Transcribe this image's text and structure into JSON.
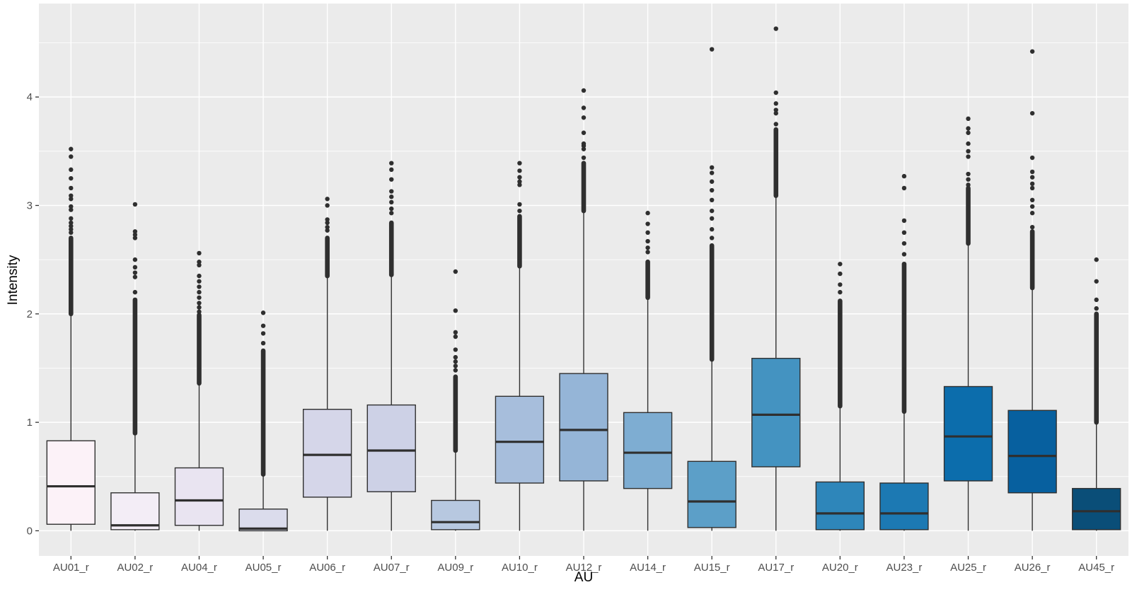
{
  "chart_data": {
    "type": "boxplot",
    "xlabel": "AU",
    "ylabel": "Intensity",
    "ylim": [
      -0.232,
      4.862
    ],
    "yticks": [
      0,
      1,
      2,
      3,
      4
    ],
    "yminor": [
      0.5,
      1.5,
      2.5,
      3.5,
      4.5
    ],
    "grid_on": true,
    "panel_bg": "#EBEBEB",
    "grid_color": "#FFFFFF",
    "line_color": "#2F2F2F",
    "tick_color": "#333333",
    "tick_label_color": "#4D4D4D",
    "categories": [
      "AU01_r",
      "AU02_r",
      "AU04_r",
      "AU05_r",
      "AU06_r",
      "AU07_r",
      "AU09_r",
      "AU10_r",
      "AU12_r",
      "AU14_r",
      "AU15_r",
      "AU17_r",
      "AU20_r",
      "AU23_r",
      "AU25_r",
      "AU26_r",
      "AU45_r"
    ],
    "boxes": [
      {
        "label": "AU01_r",
        "fill": "#FCF2F8",
        "q1": 0.06,
        "median": 0.41,
        "q3": 0.83,
        "whisker_low": 0.0,
        "whisker_high": 2.0,
        "outlier_dense": [
          2.0,
          2.7
        ],
        "outliers": [
          2.75,
          2.78,
          2.81,
          2.84,
          2.88,
          2.96,
          2.99,
          3.06,
          3.09,
          3.16,
          3.25,
          3.33,
          3.45,
          3.52
        ]
      },
      {
        "label": "AU02_r",
        "fill": "#F3EDF6",
        "q1": 0.01,
        "median": 0.05,
        "q3": 0.35,
        "whisker_low": 0.0,
        "whisker_high": 0.9,
        "outlier_dense": [
          0.9,
          2.13
        ],
        "outliers": [
          2.2,
          2.34,
          2.38,
          2.43,
          2.5,
          2.7,
          2.73,
          2.76,
          3.01
        ]
      },
      {
        "label": "AU04_r",
        "fill": "#E9E4F1",
        "q1": 0.05,
        "median": 0.28,
        "q3": 0.58,
        "whisker_low": 0.0,
        "whisker_high": 1.36,
        "outlier_dense": [
          1.36,
          1.99
        ],
        "outliers": [
          2.02,
          2.06,
          2.1,
          2.15,
          2.2,
          2.25,
          2.3,
          2.35,
          2.45,
          2.48,
          2.56
        ]
      },
      {
        "label": "AU05_r",
        "fill": "#DBDCEC",
        "q1": 0.0,
        "median": 0.02,
        "q3": 0.2,
        "whisker_low": 0.0,
        "whisker_high": 0.52,
        "outlier_dense": [
          0.52,
          1.66
        ],
        "outliers": [
          1.73,
          1.82,
          1.89,
          2.01
        ]
      },
      {
        "label": "AU06_r",
        "fill": "#D5D6E9",
        "q1": 0.31,
        "median": 0.7,
        "q3": 1.12,
        "whisker_low": 0.0,
        "whisker_high": 2.35,
        "outlier_dense": [
          2.35,
          2.7
        ],
        "outliers": [
          2.77,
          2.8,
          2.84,
          2.87,
          3.0,
          3.06
        ]
      },
      {
        "label": "AU07_r",
        "fill": "#CDD1E6",
        "q1": 0.36,
        "median": 0.74,
        "q3": 1.16,
        "whisker_low": 0.0,
        "whisker_high": 2.36,
        "outlier_dense": [
          2.36,
          2.84
        ],
        "outliers": [
          2.93,
          2.97,
          3.03,
          3.08,
          3.13,
          3.24,
          3.33,
          3.39
        ]
      },
      {
        "label": "AU09_r",
        "fill": "#B7C8E0",
        "q1": 0.01,
        "median": 0.08,
        "q3": 0.28,
        "whisker_low": 0.0,
        "whisker_high": 0.74,
        "outlier_dense": [
          0.74,
          1.42
        ],
        "outliers": [
          1.48,
          1.52,
          1.56,
          1.6,
          1.67,
          1.79,
          1.83,
          2.03,
          2.39
        ]
      },
      {
        "label": "AU10_r",
        "fill": "#A7BEDC",
        "q1": 0.44,
        "median": 0.82,
        "q3": 1.24,
        "whisker_low": 0.0,
        "whisker_high": 2.44,
        "outlier_dense": [
          2.44,
          2.9
        ],
        "outliers": [
          2.95,
          3.01,
          3.19,
          3.22,
          3.26,
          3.32,
          3.39
        ]
      },
      {
        "label": "AU12_r",
        "fill": "#95B5D7",
        "q1": 0.46,
        "median": 0.93,
        "q3": 1.45,
        "whisker_low": 0.0,
        "whisker_high": 2.95,
        "outlier_dense": [
          2.95,
          3.39
        ],
        "outliers": [
          3.44,
          3.52,
          3.55,
          3.57,
          3.67,
          3.81,
          3.9,
          4.06
        ]
      },
      {
        "label": "AU14_r",
        "fill": "#7EADD2",
        "q1": 0.39,
        "median": 0.72,
        "q3": 1.09,
        "whisker_low": 0.0,
        "whisker_high": 2.15,
        "outlier_dense": [
          2.15,
          2.48
        ],
        "outliers": [
          2.57,
          2.61,
          2.67,
          2.75,
          2.83,
          2.93
        ]
      },
      {
        "label": "AU15_r",
        "fill": "#5C9FC8",
        "q1": 0.03,
        "median": 0.27,
        "q3": 0.64,
        "whisker_low": 0.0,
        "whisker_high": 1.58,
        "outlier_dense": [
          1.58,
          2.63
        ],
        "outliers": [
          2.7,
          2.78,
          2.88,
          2.95,
          3.05,
          3.14,
          3.22,
          3.3,
          3.35,
          4.44
        ]
      },
      {
        "label": "AU17_r",
        "fill": "#4493C1",
        "q1": 0.59,
        "median": 1.07,
        "q3": 1.59,
        "whisker_low": 0.0,
        "whisker_high": 3.09,
        "outlier_dense": [
          3.09,
          3.7
        ],
        "outliers": [
          3.75,
          3.85,
          3.88,
          3.94,
          4.04,
          4.63
        ]
      },
      {
        "label": "AU20_r",
        "fill": "#2E86BA",
        "q1": 0.01,
        "median": 0.16,
        "q3": 0.45,
        "whisker_low": 0.0,
        "whisker_high": 1.15,
        "outlier_dense": [
          1.15,
          2.12
        ],
        "outliers": [
          2.2,
          2.27,
          2.37,
          2.46
        ]
      },
      {
        "label": "AU23_r",
        "fill": "#1C79B3",
        "q1": 0.01,
        "median": 0.16,
        "q3": 0.44,
        "whisker_low": 0.0,
        "whisker_high": 1.1,
        "outlier_dense": [
          1.1,
          2.46
        ],
        "outliers": [
          2.55,
          2.65,
          2.75,
          2.86,
          3.16,
          3.27
        ]
      },
      {
        "label": "AU25_r",
        "fill": "#0C6DAC",
        "q1": 0.46,
        "median": 0.87,
        "q3": 1.33,
        "whisker_low": 0.0,
        "whisker_high": 2.65,
        "outlier_dense": [
          2.65,
          3.16
        ],
        "outliers": [
          3.19,
          3.24,
          3.29,
          3.45,
          3.5,
          3.57,
          3.67,
          3.71,
          3.8
        ]
      },
      {
        "label": "AU26_r",
        "fill": "#07609F",
        "q1": 0.35,
        "median": 0.69,
        "q3": 1.11,
        "whisker_low": 0.0,
        "whisker_high": 2.24,
        "outlier_dense": [
          2.24,
          2.76
        ],
        "outliers": [
          2.8,
          2.93,
          2.99,
          3.05,
          3.16,
          3.2,
          3.26,
          3.31,
          3.44,
          3.85,
          4.42
        ]
      },
      {
        "label": "AU45_r",
        "fill": "#0A4E78",
        "q1": 0.01,
        "median": 0.18,
        "q3": 0.39,
        "whisker_low": 0.0,
        "whisker_high": 1.0,
        "outlier_dense": [
          1.0,
          2.0
        ],
        "outliers": [
          2.05,
          2.13,
          2.3,
          2.5
        ]
      }
    ]
  }
}
